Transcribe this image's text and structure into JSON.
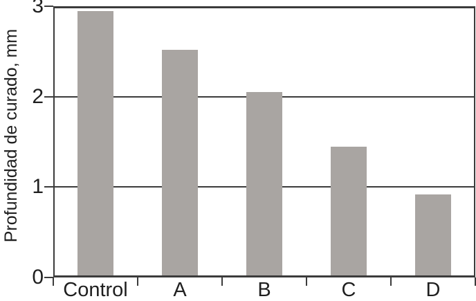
{
  "chart_data": {
    "type": "bar",
    "title": "",
    "xlabel": "",
    "ylabel": "Profundidad de curado, mm",
    "categories": [
      "Control",
      "A",
      "B",
      "C",
      "D"
    ],
    "values": [
      2.95,
      2.52,
      2.05,
      1.45,
      0.92
    ],
    "ylim": [
      0,
      3
    ],
    "yticks": [
      0,
      1,
      2,
      3
    ],
    "grid": "horizontal gridlines at y=1 and y=2, full box frame around plot",
    "legend_position": "none",
    "bar_color": "#a9a5a2",
    "axis_color": "#3b3b3b",
    "text_color": "#1f1f1f",
    "background_color": "#ffffff"
  }
}
